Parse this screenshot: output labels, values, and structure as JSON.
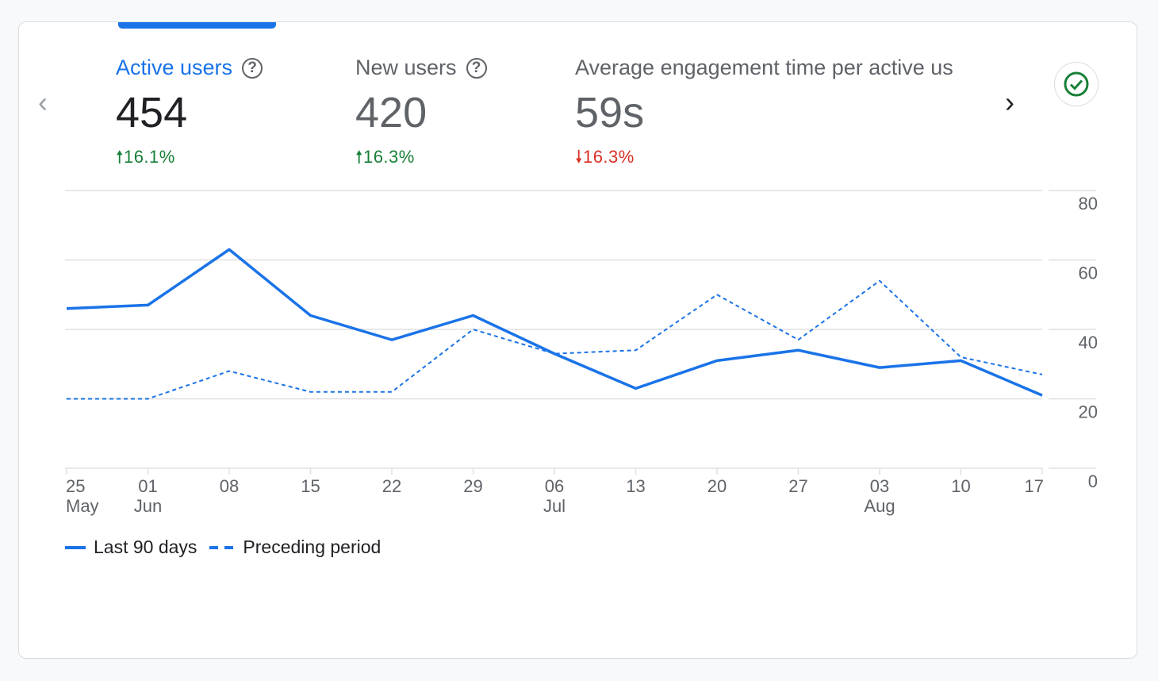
{
  "metrics": [
    {
      "label": "Active users",
      "value": "454",
      "delta": "16.1%",
      "direction": "up",
      "help_icon": "?"
    },
    {
      "label": "New users",
      "value": "420",
      "delta": "16.3%",
      "direction": "up",
      "help_icon": "?"
    },
    {
      "label": "Average engagement time per active us",
      "value": "59s",
      "delta": "16.3%",
      "direction": "down"
    }
  ],
  "nav": {
    "prev": "‹",
    "next": "›"
  },
  "colors": {
    "accent": "#1a73e8",
    "up": "#188038",
    "down": "#d93025"
  },
  "chart_data": {
    "type": "line",
    "x": [
      "25 May",
      "01 Jun",
      "08",
      "15",
      "22",
      "29",
      "06 Jul",
      "13",
      "20",
      "27",
      "03 Aug",
      "10",
      "17"
    ],
    "xtick_top": [
      "25",
      "01",
      "08",
      "15",
      "22",
      "29",
      "06",
      "13",
      "20",
      "27",
      "03",
      "10",
      "17"
    ],
    "xtick_bottom": [
      "May",
      "Jun",
      "",
      "",
      "",
      "",
      "Jul",
      "",
      "",
      "",
      "Aug",
      "",
      ""
    ],
    "yticks": [
      "0",
      "20",
      "40",
      "60",
      "80"
    ],
    "ylim": [
      0,
      80
    ],
    "series": [
      {
        "name": "Last 90 days",
        "style": "solid",
        "values": [
          46,
          47,
          63,
          44,
          37,
          44,
          33,
          23,
          31,
          34,
          29,
          31,
          21
        ]
      },
      {
        "name": "Preceding period",
        "style": "dashed",
        "values": [
          20,
          20,
          28,
          22,
          22,
          40,
          33,
          34,
          50,
          37,
          54,
          32,
          27
        ]
      }
    ],
    "legend_position": "bottom-left",
    "grid": true
  }
}
